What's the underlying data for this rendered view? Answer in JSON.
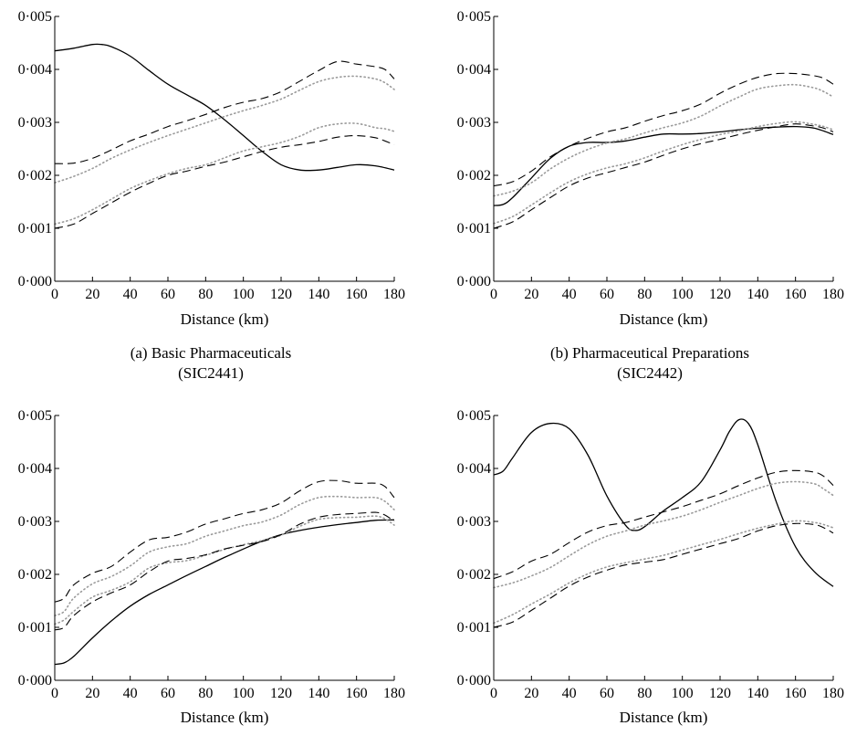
{
  "chart_data": [
    {
      "type": "line",
      "caption_line1": "(a) Basic Pharmaceuticals",
      "caption_line2": "(SIC2441)",
      "xlabel": "Distance (km)",
      "ylabel": "",
      "xlim": [
        0,
        180
      ],
      "ylim": [
        0,
        0.005
      ],
      "xticks": [
        "0",
        "20",
        "40",
        "60",
        "80",
        "100",
        "120",
        "140",
        "160",
        "180"
      ],
      "yticks": [
        "0·000",
        "0·001",
        "0·002",
        "0·003",
        "0·004",
        "0·005"
      ],
      "series": [
        {
          "style": "solid",
          "x": [
            0,
            10,
            20,
            25,
            30,
            40,
            50,
            60,
            70,
            80,
            90,
            100,
            110,
            120,
            130,
            140,
            150,
            160,
            170,
            180
          ],
          "values": [
            0.00435,
            0.0044,
            0.00447,
            0.00447,
            0.00443,
            0.00425,
            0.00398,
            0.00372,
            0.00352,
            0.00332,
            0.00305,
            0.00275,
            0.00245,
            0.0022,
            0.0021,
            0.0021,
            0.00215,
            0.0022,
            0.00218,
            0.0021
          ]
        },
        {
          "style": "dashed",
          "x": [
            0,
            10,
            20,
            30,
            40,
            50,
            60,
            70,
            80,
            90,
            100,
            110,
            120,
            130,
            140,
            150,
            160,
            170,
            175,
            180
          ],
          "values": [
            0.00222,
            0.00223,
            0.00232,
            0.00248,
            0.00265,
            0.00278,
            0.00292,
            0.00303,
            0.00315,
            0.00328,
            0.00338,
            0.00345,
            0.00358,
            0.00378,
            0.00398,
            0.00415,
            0.0041,
            0.00405,
            0.004,
            0.00382
          ]
        },
        {
          "style": "dotted",
          "x": [
            0,
            10,
            20,
            30,
            40,
            50,
            60,
            70,
            80,
            90,
            100,
            110,
            120,
            130,
            140,
            150,
            160,
            170,
            175,
            180
          ],
          "values": [
            0.00186,
            0.00198,
            0.00213,
            0.00232,
            0.00248,
            0.00262,
            0.00275,
            0.00287,
            0.00299,
            0.00311,
            0.00322,
            0.00332,
            0.00344,
            0.00361,
            0.00377,
            0.00385,
            0.00387,
            0.00382,
            0.00375,
            0.00362
          ]
        },
        {
          "style": "dotted",
          "x": [
            0,
            10,
            20,
            30,
            40,
            50,
            60,
            70,
            80,
            90,
            100,
            110,
            120,
            130,
            140,
            150,
            160,
            170,
            175,
            180
          ],
          "values": [
            0.00108,
            0.00118,
            0.00135,
            0.00155,
            0.00175,
            0.0019,
            0.00203,
            0.00213,
            0.0022,
            0.00233,
            0.00246,
            0.00254,
            0.00262,
            0.00274,
            0.0029,
            0.00297,
            0.00298,
            0.0029,
            0.00288,
            0.00283
          ]
        },
        {
          "style": "dashed",
          "x": [
            0,
            10,
            20,
            30,
            40,
            50,
            60,
            70,
            80,
            90,
            100,
            110,
            120,
            130,
            140,
            150,
            160,
            170,
            175,
            180
          ],
          "values": [
            0.001,
            0.00108,
            0.00128,
            0.00148,
            0.00168,
            0.00185,
            0.002,
            0.00208,
            0.00217,
            0.00225,
            0.00235,
            0.00245,
            0.00253,
            0.00258,
            0.00264,
            0.00272,
            0.00275,
            0.00271,
            0.00265,
            0.00258
          ]
        }
      ]
    },
    {
      "type": "line",
      "caption_line1": "(b) Pharmaceutical Preparations",
      "caption_line2": "(SIC2442)",
      "xlabel": "Distance (km)",
      "ylabel": "",
      "xlim": [
        0,
        180
      ],
      "ylim": [
        0,
        0.005
      ],
      "xticks": [
        "0",
        "20",
        "40",
        "60",
        "80",
        "100",
        "120",
        "140",
        "160",
        "180"
      ],
      "yticks": [
        "0·000",
        "0·001",
        "0·002",
        "0·003",
        "0·004",
        "0·005"
      ],
      "series": [
        {
          "style": "solid",
          "x": [
            0,
            5,
            10,
            20,
            30,
            40,
            50,
            60,
            70,
            80,
            90,
            100,
            110,
            120,
            130,
            140,
            150,
            160,
            170,
            180
          ],
          "values": [
            0.00143,
            0.00145,
            0.00158,
            0.00195,
            0.00232,
            0.00255,
            0.00262,
            0.00262,
            0.00265,
            0.00272,
            0.00278,
            0.00278,
            0.00279,
            0.00282,
            0.00286,
            0.00289,
            0.00291,
            0.00292,
            0.00289,
            0.00277
          ]
        },
        {
          "style": "dashed",
          "x": [
            0,
            10,
            20,
            30,
            40,
            50,
            60,
            70,
            80,
            90,
            100,
            110,
            120,
            130,
            140,
            150,
            160,
            170,
            175,
            180
          ],
          "values": [
            0.0018,
            0.00188,
            0.00208,
            0.00235,
            0.00255,
            0.0027,
            0.00282,
            0.0029,
            0.00302,
            0.00313,
            0.00322,
            0.00335,
            0.00355,
            0.00372,
            0.00385,
            0.00392,
            0.00392,
            0.00388,
            0.00383,
            0.00372
          ]
        },
        {
          "style": "dotted",
          "x": [
            0,
            10,
            20,
            30,
            40,
            50,
            60,
            70,
            80,
            90,
            100,
            110,
            120,
            130,
            140,
            150,
            160,
            170,
            175,
            180
          ],
          "values": [
            0.00161,
            0.0017,
            0.00186,
            0.00212,
            0.00233,
            0.00249,
            0.00261,
            0.00269,
            0.0028,
            0.0029,
            0.00299,
            0.00312,
            0.00331,
            0.00348,
            0.00363,
            0.00369,
            0.00371,
            0.00365,
            0.00358,
            0.00348
          ]
        },
        {
          "style": "dotted",
          "x": [
            0,
            10,
            20,
            30,
            40,
            50,
            60,
            70,
            80,
            90,
            100,
            110,
            120,
            130,
            140,
            150,
            160,
            170,
            175,
            180
          ],
          "values": [
            0.00109,
            0.00122,
            0.00144,
            0.00167,
            0.00188,
            0.00203,
            0.00214,
            0.00222,
            0.00233,
            0.00246,
            0.00258,
            0.00268,
            0.00277,
            0.00284,
            0.00292,
            0.00298,
            0.00301,
            0.00296,
            0.00292,
            0.00286
          ]
        },
        {
          "style": "dashed",
          "x": [
            0,
            10,
            20,
            30,
            40,
            50,
            60,
            70,
            80,
            90,
            100,
            110,
            120,
            130,
            140,
            150,
            160,
            170,
            175,
            180
          ],
          "values": [
            0.001,
            0.00112,
            0.00135,
            0.00158,
            0.0018,
            0.00195,
            0.00205,
            0.00215,
            0.00225,
            0.00238,
            0.0025,
            0.0026,
            0.00268,
            0.00277,
            0.00285,
            0.00292,
            0.00297,
            0.00293,
            0.00289,
            0.00282
          ]
        }
      ]
    },
    {
      "type": "line",
      "caption_line1": "",
      "caption_line2": "",
      "xlabel": "Distance (km)",
      "ylabel": "",
      "xlim": [
        0,
        180
      ],
      "ylim": [
        0,
        0.005
      ],
      "xticks": [
        "0",
        "20",
        "40",
        "60",
        "80",
        "100",
        "120",
        "140",
        "160",
        "180"
      ],
      "yticks": [
        "0·000",
        "0·001",
        "0·002",
        "0·003",
        "0·004",
        "0·005"
      ],
      "series": [
        {
          "style": "solid",
          "x": [
            0,
            5,
            10,
            20,
            30,
            40,
            50,
            60,
            70,
            80,
            90,
            100,
            110,
            120,
            130,
            140,
            150,
            160,
            170,
            180
          ],
          "values": [
            0.0003,
            0.00033,
            0.00045,
            0.0008,
            0.00112,
            0.0014,
            0.00162,
            0.0018,
            0.00198,
            0.00215,
            0.00232,
            0.00248,
            0.00263,
            0.00275,
            0.00283,
            0.00289,
            0.00294,
            0.00298,
            0.00302,
            0.00303
          ]
        },
        {
          "style": "dashed",
          "x": [
            0,
            5,
            10,
            20,
            30,
            40,
            50,
            60,
            70,
            80,
            90,
            100,
            110,
            120,
            130,
            140,
            150,
            160,
            170,
            175,
            180
          ],
          "values": [
            0.00148,
            0.00155,
            0.0018,
            0.00202,
            0.00215,
            0.00242,
            0.00265,
            0.0027,
            0.0028,
            0.00295,
            0.00305,
            0.00315,
            0.00322,
            0.00335,
            0.00358,
            0.00375,
            0.00377,
            0.00372,
            0.00372,
            0.00366,
            0.00345
          ]
        },
        {
          "style": "dotted",
          "x": [
            0,
            5,
            10,
            20,
            30,
            40,
            50,
            60,
            70,
            80,
            90,
            100,
            110,
            120,
            130,
            140,
            150,
            160,
            170,
            175,
            180
          ],
          "values": [
            0.00122,
            0.0013,
            0.00155,
            0.00182,
            0.00196,
            0.00216,
            0.00242,
            0.00252,
            0.00258,
            0.00272,
            0.00282,
            0.00292,
            0.00299,
            0.00312,
            0.00332,
            0.00345,
            0.00347,
            0.00345,
            0.00345,
            0.00338,
            0.00322
          ]
        },
        {
          "style": "dotted",
          "x": [
            0,
            5,
            10,
            20,
            30,
            40,
            50,
            60,
            70,
            80,
            90,
            100,
            110,
            120,
            130,
            140,
            150,
            160,
            170,
            175,
            180
          ],
          "values": [
            0.00106,
            0.00114,
            0.0013,
            0.00157,
            0.0017,
            0.00186,
            0.00212,
            0.00222,
            0.00226,
            0.00236,
            0.00247,
            0.00256,
            0.00264,
            0.00274,
            0.00291,
            0.00304,
            0.00307,
            0.00308,
            0.0031,
            0.00305,
            0.00293
          ]
        },
        {
          "style": "dashed",
          "x": [
            0,
            5,
            10,
            20,
            30,
            40,
            50,
            60,
            70,
            80,
            90,
            100,
            110,
            120,
            130,
            140,
            150,
            160,
            170,
            175,
            180
          ],
          "values": [
            0.00095,
            0.001,
            0.00122,
            0.00148,
            0.00165,
            0.0018,
            0.00205,
            0.00225,
            0.0023,
            0.00237,
            0.00248,
            0.00255,
            0.00262,
            0.00275,
            0.00295,
            0.00308,
            0.00313,
            0.00315,
            0.00317,
            0.00312,
            0.003
          ]
        }
      ]
    },
    {
      "type": "line",
      "caption_line1": "",
      "caption_line2": "",
      "xlabel": "Distance (km)",
      "ylabel": "",
      "xlim": [
        0,
        180
      ],
      "ylim": [
        0,
        0.005
      ],
      "xticks": [
        "0",
        "20",
        "40",
        "60",
        "80",
        "100",
        "120",
        "140",
        "160",
        "180"
      ],
      "yticks": [
        "0·000",
        "0·001",
        "0·002",
        "0·003",
        "0·004",
        "0·005"
      ],
      "series": [
        {
          "style": "solid",
          "x": [
            0,
            5,
            10,
            20,
            30,
            40,
            50,
            60,
            70,
            75,
            80,
            90,
            100,
            110,
            120,
            125,
            130,
            135,
            140,
            150,
            160,
            170,
            180
          ],
          "values": [
            0.00388,
            0.00395,
            0.0042,
            0.00468,
            0.00485,
            0.00475,
            0.00425,
            0.00348,
            0.00292,
            0.00283,
            0.0029,
            0.0032,
            0.00345,
            0.00375,
            0.00435,
            0.0047,
            0.00492,
            0.00485,
            0.00445,
            0.00335,
            0.00252,
            0.00205,
            0.00177
          ]
        },
        {
          "style": "dashed",
          "x": [
            0,
            10,
            20,
            30,
            40,
            50,
            60,
            70,
            80,
            90,
            100,
            110,
            120,
            130,
            140,
            150,
            160,
            170,
            175,
            180
          ],
          "values": [
            0.00192,
            0.00205,
            0.00225,
            0.00238,
            0.0026,
            0.0028,
            0.00292,
            0.00298,
            0.00308,
            0.00318,
            0.00328,
            0.0034,
            0.00352,
            0.00368,
            0.00382,
            0.00393,
            0.00396,
            0.00393,
            0.00385,
            0.00368
          ]
        },
        {
          "style": "dotted",
          "x": [
            0,
            10,
            20,
            30,
            40,
            50,
            60,
            70,
            80,
            90,
            100,
            110,
            120,
            130,
            140,
            150,
            160,
            170,
            175,
            180
          ],
          "values": [
            0.00175,
            0.00184,
            0.00197,
            0.00213,
            0.00235,
            0.00256,
            0.00272,
            0.00282,
            0.00293,
            0.00301,
            0.0031,
            0.00322,
            0.00336,
            0.00349,
            0.00362,
            0.00372,
            0.00375,
            0.00371,
            0.00361,
            0.00349
          ]
        },
        {
          "style": "dotted",
          "x": [
            0,
            10,
            20,
            30,
            40,
            50,
            60,
            70,
            80,
            90,
            100,
            110,
            120,
            130,
            140,
            150,
            160,
            170,
            175,
            180
          ],
          "values": [
            0.00108,
            0.00124,
            0.00144,
            0.00163,
            0.00184,
            0.00201,
            0.00214,
            0.00222,
            0.00229,
            0.00236,
            0.00246,
            0.00256,
            0.00266,
            0.00277,
            0.00287,
            0.00295,
            0.00301,
            0.00298,
            0.00294,
            0.00288
          ]
        },
        {
          "style": "dashed",
          "x": [
            0,
            10,
            20,
            30,
            40,
            50,
            60,
            70,
            80,
            90,
            100,
            110,
            120,
            130,
            140,
            150,
            160,
            170,
            175,
            180
          ],
          "values": [
            0.001,
            0.0011,
            0.00132,
            0.00155,
            0.00178,
            0.00195,
            0.00208,
            0.00218,
            0.00223,
            0.00228,
            0.00238,
            0.00248,
            0.00258,
            0.00268,
            0.00282,
            0.00292,
            0.00296,
            0.00294,
            0.00288,
            0.00278
          ]
        }
      ]
    }
  ]
}
